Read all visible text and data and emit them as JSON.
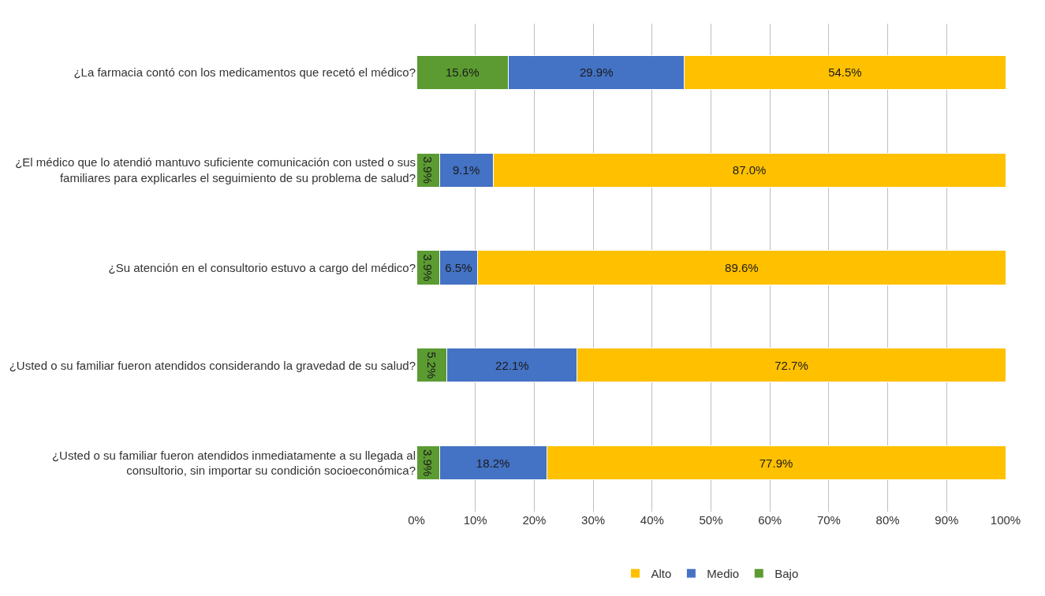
{
  "chart_data": {
    "type": "bar",
    "orientation": "horizontal",
    "stacked": true,
    "categories": [
      "¿La farmacia contó con los medicamentos que recetó el médico?",
      "¿El médico que lo atendió mantuvo suficiente comunicación con usted o sus familiares para explicarles el seguimiento de su problema de salud?",
      "¿Su atención en el consultorio estuvo a cargo del médico?",
      "¿Usted o su familiar fueron atendidos considerando la gravedad de su salud?",
      "¿Usted o su familiar fueron atendidos inmediatamente a su llegada al consultorio, sin importar su condición socioeconómica?"
    ],
    "series": [
      {
        "name": "Bajo",
        "color": "#5b9b32",
        "values": [
          15.6,
          3.9,
          3.9,
          5.2,
          3.9
        ],
        "value_labels": [
          "15.6%",
          "3.9%",
          "3.9%",
          "5.2%",
          "3.9%"
        ]
      },
      {
        "name": "Medio",
        "color": "#4472c4",
        "values": [
          29.9,
          9.1,
          6.5,
          22.1,
          18.2
        ],
        "value_labels": [
          "29.9%",
          "9.1%",
          "6.5%",
          "22.1%",
          "18.2%"
        ]
      },
      {
        "name": "Alto",
        "color": "#ffc000",
        "values": [
          54.5,
          87.0,
          89.6,
          72.7,
          77.9
        ],
        "value_labels": [
          "54.5%",
          "87.0%",
          "89.6%",
          "72.7%",
          "77.9%"
        ]
      }
    ],
    "xlim": [
      0,
      100
    ],
    "xticks": [
      {
        "value": 0,
        "label": "0%"
      },
      {
        "value": 10,
        "label": "10%"
      },
      {
        "value": 20,
        "label": "20%"
      },
      {
        "value": 30,
        "label": "30%"
      },
      {
        "value": 40,
        "label": "40%"
      },
      {
        "value": 50,
        "label": "50%"
      },
      {
        "value": 60,
        "label": "60%"
      },
      {
        "value": 70,
        "label": "70%"
      },
      {
        "value": 80,
        "label": "80%"
      },
      {
        "value": 90,
        "label": "90%"
      },
      {
        "value": 100,
        "label": "100%"
      }
    ],
    "grid": "x",
    "legend": "bottom"
  }
}
